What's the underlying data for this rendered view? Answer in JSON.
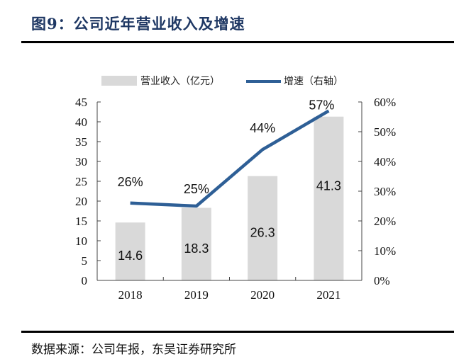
{
  "title": "图9：公司近年营业收入及增速",
  "source": "数据来源：公司年报，东吴证券研究所",
  "chart_data": {
    "type": "bar",
    "title": "公司近年营业收入及增速",
    "categories": [
      "2018",
      "2019",
      "2020",
      "2021"
    ],
    "series": [
      {
        "name": "营业收入（亿元）",
        "type": "bar",
        "axis": "left",
        "color": "#d9d9d9",
        "values": [
          14.6,
          18.3,
          26.3,
          41.3
        ],
        "labels": [
          "14.6",
          "18.3",
          "26.3",
          "41.3"
        ]
      },
      {
        "name": "增速（右轴）",
        "type": "line",
        "axis": "right",
        "color": "#2e5f96",
        "values": [
          26,
          25,
          44,
          57
        ],
        "labels": [
          "26%",
          "25%",
          "44%",
          "57%"
        ]
      }
    ],
    "y_left": {
      "range": [
        0,
        45
      ],
      "ticks": [
        "0",
        "5",
        "10",
        "15",
        "20",
        "25",
        "30",
        "35",
        "40",
        "45"
      ]
    },
    "y_right": {
      "range": [
        0,
        60
      ],
      "ticks": [
        "0%",
        "10%",
        "20%",
        "30%",
        "40%",
        "50%",
        "60%"
      ]
    },
    "xlabel": "",
    "ylabel": "",
    "grid": false,
    "legend_position": "top"
  }
}
